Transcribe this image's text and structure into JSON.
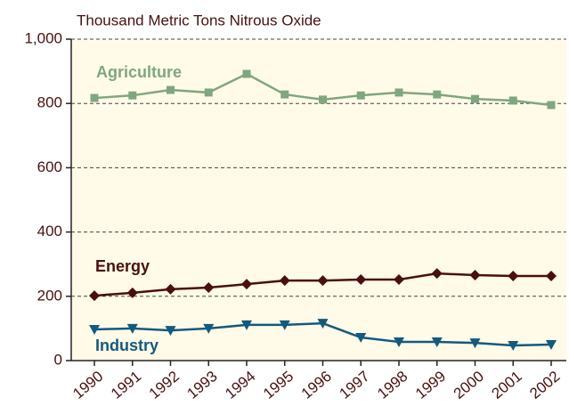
{
  "chart_data": {
    "type": "line",
    "title": "Thousand Metric Tons Nitrous Oxide",
    "categories": [
      "1990",
      "1991",
      "1992",
      "1993",
      "1994",
      "1995",
      "1996",
      "1997",
      "1998",
      "1999",
      "2000",
      "2001",
      "2002"
    ],
    "series": [
      {
        "name": "Agriculture",
        "color": "#7fa77f",
        "marker": "square",
        "values": [
          817,
          825,
          842,
          834,
          892,
          828,
          812,
          825,
          834,
          828,
          814,
          809,
          795
        ]
      },
      {
        "name": "Energy",
        "color": "#4a0f0f",
        "marker": "diamond",
        "values": [
          202,
          211,
          222,
          227,
          238,
          249,
          249,
          252,
          252,
          271,
          266,
          263,
          263
        ]
      },
      {
        "name": "Industry",
        "color": "#135a7f",
        "marker": "triangle-down",
        "values": [
          97,
          100,
          94,
          100,
          111,
          111,
          116,
          72,
          58,
          58,
          55,
          47,
          50
        ]
      }
    ],
    "ylim": [
      0,
      1000
    ],
    "yticks": [
      0,
      200,
      400,
      600,
      {
        "value": 1000,
        "label": "1,000"
      },
      800
    ],
    "grid": true
  }
}
